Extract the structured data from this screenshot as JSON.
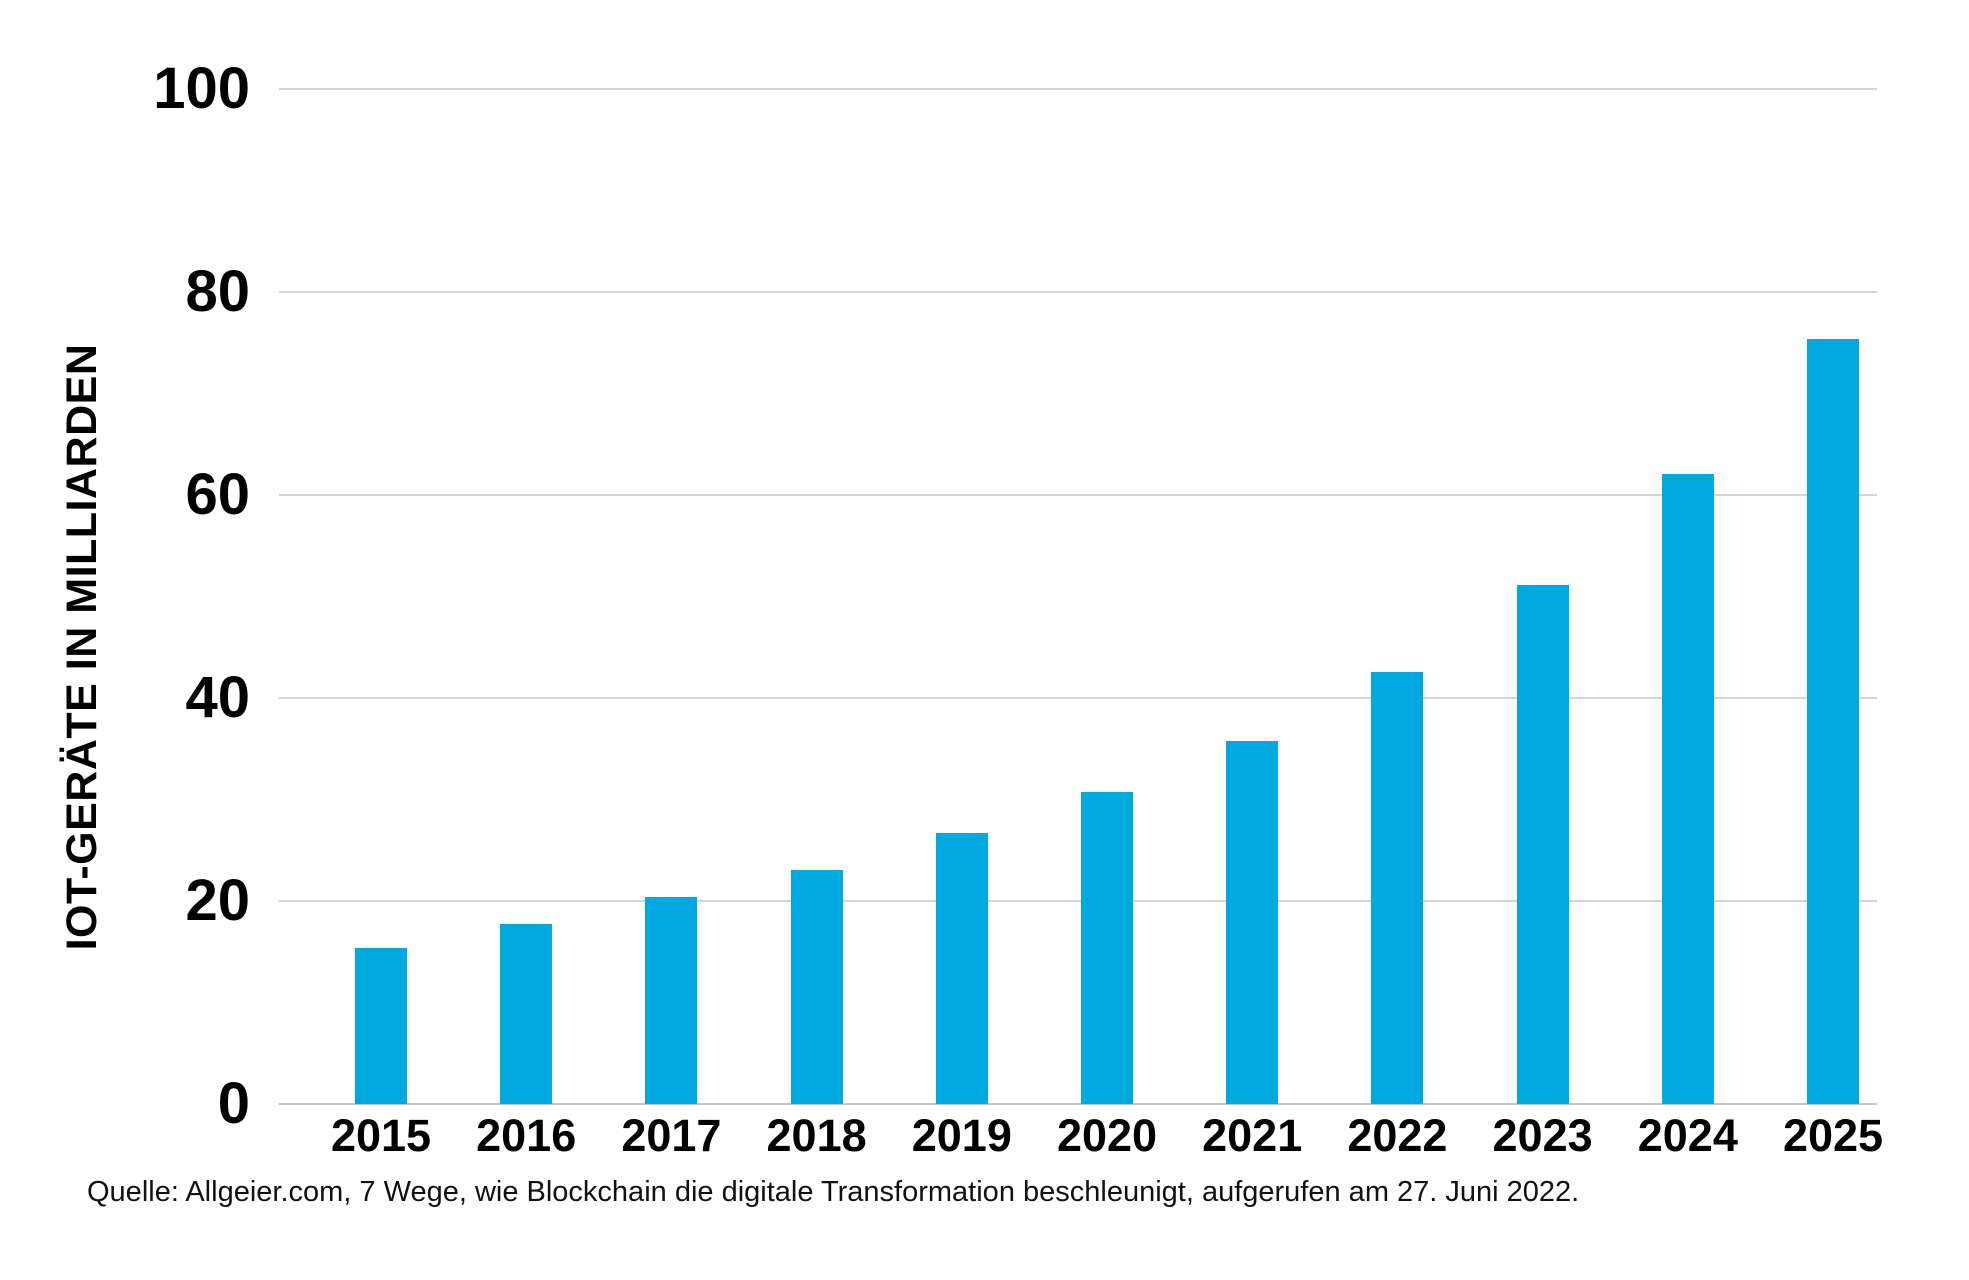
{
  "chart_data": {
    "type": "bar",
    "title": "",
    "categories": [
      "2015",
      "2016",
      "2017",
      "2018",
      "2019",
      "2020",
      "2021",
      "2022",
      "2023",
      "2024",
      "2025"
    ],
    "values": [
      15.4,
      17.7,
      20.4,
      23.1,
      26.7,
      30.7,
      35.8,
      42.6,
      51.1,
      62.1,
      75.4
    ],
    "xlabel": "",
    "ylabel": "IOT-GERÄTE IN MILLIARDEN",
    "ylim": [
      0,
      100
    ],
    "yticks": [
      0,
      20,
      40,
      60,
      80,
      100
    ],
    "grid": true,
    "legend_position": "none"
  },
  "source_note": "Quelle: Allgeier.com, 7 Wege, wie Blockchain die digitale Transformation beschleunigt, aufgerufen am 27. Juni 2022.",
  "colors": {
    "bar": "#00A8E0",
    "gridline": "#d3d3d9",
    "baseline": "#c6c6c9",
    "text": "#000000",
    "source_text": "#111111",
    "background": "#ffffff"
  }
}
